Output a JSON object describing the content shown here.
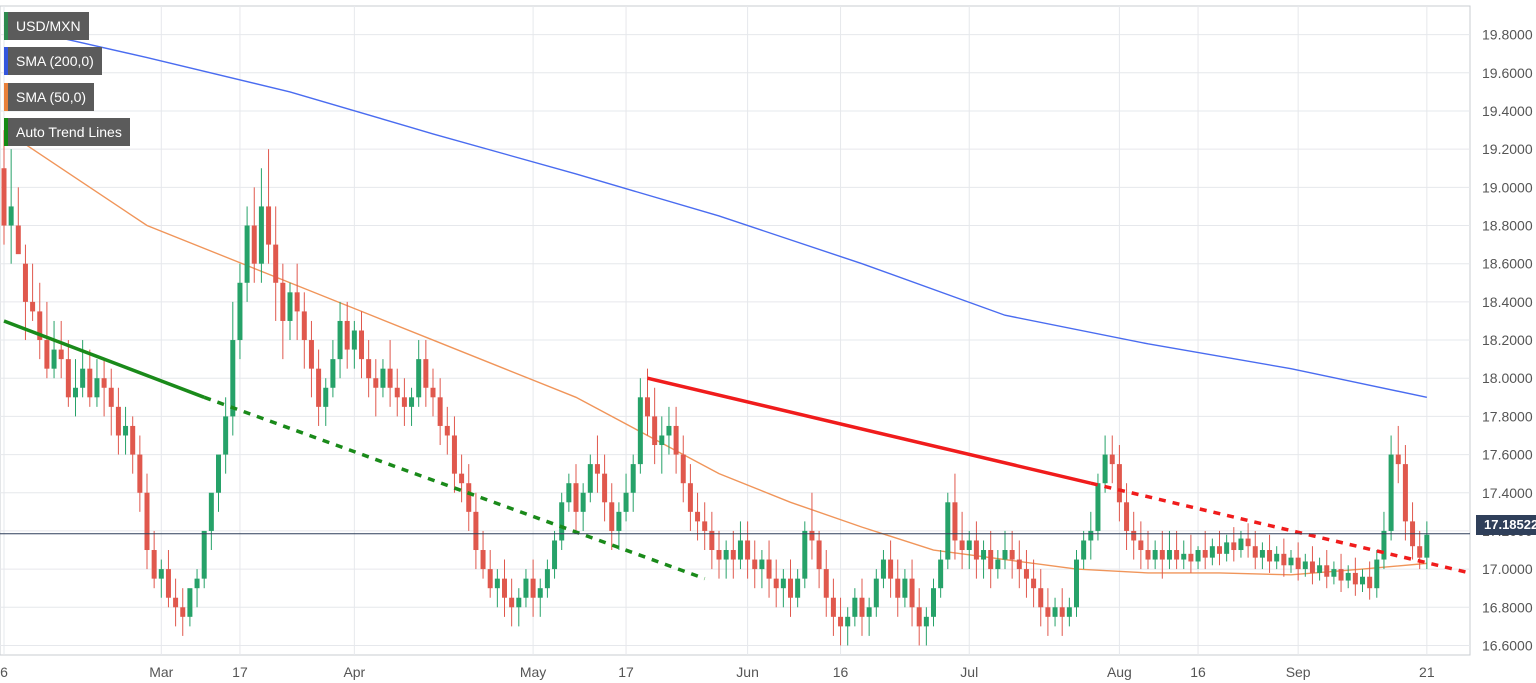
{
  "legend": {
    "symbol": "USD/MXN",
    "sma200": "SMA (200,0)",
    "sma50": "SMA (50,0)",
    "trend": "Auto Trend Lines"
  },
  "colors": {
    "bull": "#26a269",
    "bear": "#e0584d",
    "sma200": "#4a6cf0",
    "sma50": "#f0955a",
    "trend_up": "#1a8a1a",
    "trend_down": "#f01c1c",
    "grid": "#e6e8ec"
  },
  "current_price": "17.18522",
  "chart_data": {
    "type": "candlestick",
    "title": "USD/MXN",
    "y_ticks": [
      "19.8000",
      "19.6000",
      "19.4000",
      "19.2000",
      "19.0000",
      "18.8000",
      "18.6000",
      "18.4000",
      "18.2000",
      "18.0000",
      "17.8000",
      "17.6000",
      "17.4000",
      "17.2000",
      "17.0000",
      "16.8000",
      "16.6000"
    ],
    "ylim": [
      16.55,
      19.95
    ],
    "x_labels": [
      "6",
      "Mar",
      "17",
      "Apr",
      "May",
      "17",
      "Jun",
      "16",
      "Jul",
      "Aug",
      "16",
      "Sep",
      "21"
    ],
    "x_index": [
      0,
      22,
      33,
      49,
      74,
      87,
      104,
      117,
      135,
      156,
      167,
      181,
      199
    ],
    "last_price": 17.18522,
    "candles": [
      [
        19.1,
        19.3,
        18.8,
        18.7
      ],
      [
        18.8,
        19.2,
        18.9,
        18.6
      ],
      [
        18.8,
        19.0,
        18.65,
        18.7
      ],
      [
        18.6,
        18.7,
        18.4,
        18.2
      ],
      [
        18.4,
        18.6,
        18.35,
        18.3
      ],
      [
        18.35,
        18.5,
        18.2,
        18.1
      ],
      [
        18.2,
        18.4,
        18.05,
        18.0
      ],
      [
        18.05,
        18.3,
        18.15,
        18.0
      ],
      [
        18.15,
        18.3,
        18.1,
        18.0
      ],
      [
        18.1,
        18.2,
        17.9,
        17.85
      ],
      [
        17.9,
        18.1,
        17.95,
        17.8
      ],
      [
        17.95,
        18.2,
        18.05,
        17.9
      ],
      [
        18.05,
        18.15,
        17.9,
        17.85
      ],
      [
        17.9,
        18.1,
        18.0,
        17.85
      ],
      [
        18.0,
        18.1,
        17.95,
        17.8
      ],
      [
        17.95,
        18.05,
        17.85,
        17.7
      ],
      [
        17.85,
        17.95,
        17.7,
        17.6
      ],
      [
        17.7,
        17.85,
        17.75,
        17.6
      ],
      [
        17.75,
        17.8,
        17.6,
        17.5
      ],
      [
        17.6,
        17.7,
        17.4,
        17.3
      ],
      [
        17.4,
        17.5,
        17.1,
        17.0
      ],
      [
        17.1,
        17.2,
        16.95,
        16.9
      ],
      [
        16.95,
        17.05,
        17.0,
        16.85
      ],
      [
        17.0,
        17.1,
        16.85,
        16.8
      ],
      [
        16.85,
        16.95,
        16.8,
        16.7
      ],
      [
        16.8,
        16.9,
        16.75,
        16.65
      ],
      [
        16.75,
        16.85,
        16.9,
        16.7
      ],
      [
        16.9,
        17.0,
        16.95,
        16.8
      ],
      [
        16.95,
        17.1,
        17.2,
        16.9
      ],
      [
        17.2,
        17.3,
        17.4,
        17.1
      ],
      [
        17.4,
        17.5,
        17.6,
        17.3
      ],
      [
        17.6,
        17.9,
        17.8,
        17.5
      ],
      [
        17.8,
        18.4,
        18.2,
        17.7
      ],
      [
        18.2,
        18.6,
        18.5,
        18.1
      ],
      [
        18.5,
        18.9,
        18.8,
        18.4
      ],
      [
        18.8,
        19.0,
        18.6,
        18.5
      ],
      [
        18.6,
        19.1,
        18.9,
        18.5
      ],
      [
        18.9,
        19.2,
        18.7,
        18.6
      ],
      [
        18.7,
        18.9,
        18.5,
        18.3
      ],
      [
        18.5,
        18.6,
        18.3,
        18.1
      ],
      [
        18.3,
        18.5,
        18.45,
        18.2
      ],
      [
        18.45,
        18.6,
        18.35,
        18.2
      ],
      [
        18.35,
        18.45,
        18.2,
        18.05
      ],
      [
        18.2,
        18.3,
        18.05,
        17.9
      ],
      [
        18.05,
        18.15,
        17.85,
        17.75
      ],
      [
        17.85,
        18.0,
        17.95,
        17.75
      ],
      [
        17.95,
        18.2,
        18.1,
        17.9
      ],
      [
        18.1,
        18.4,
        18.3,
        18.0
      ],
      [
        18.3,
        18.4,
        18.15,
        18.05
      ],
      [
        18.15,
        18.3,
        18.25,
        18.05
      ],
      [
        18.25,
        18.35,
        18.1,
        18.0
      ],
      [
        18.1,
        18.2,
        18.0,
        17.9
      ],
      [
        18.0,
        18.1,
        17.95,
        17.8
      ],
      [
        17.95,
        18.1,
        18.05,
        17.9
      ],
      [
        18.05,
        18.2,
        17.95,
        17.85
      ],
      [
        17.95,
        18.05,
        17.9,
        17.8
      ],
      [
        17.9,
        18.0,
        17.85,
        17.75
      ],
      [
        17.85,
        17.95,
        17.9,
        17.75
      ],
      [
        17.9,
        18.2,
        18.1,
        17.85
      ],
      [
        18.1,
        18.2,
        17.95,
        17.85
      ],
      [
        17.95,
        18.05,
        17.9,
        17.8
      ],
      [
        17.9,
        18.0,
        17.75,
        17.65
      ],
      [
        17.75,
        17.85,
        17.7,
        17.6
      ],
      [
        17.7,
        17.8,
        17.5,
        17.4
      ],
      [
        17.5,
        17.6,
        17.45,
        17.35
      ],
      [
        17.45,
        17.55,
        17.3,
        17.2
      ],
      [
        17.3,
        17.4,
        17.1,
        17.0
      ],
      [
        17.1,
        17.2,
        17.0,
        16.95
      ],
      [
        17.0,
        17.1,
        16.9,
        16.85
      ],
      [
        16.9,
        17.0,
        16.95,
        16.8
      ],
      [
        16.95,
        17.05,
        16.85,
        16.75
      ],
      [
        16.85,
        16.95,
        16.8,
        16.7
      ],
      [
        16.8,
        16.9,
        16.85,
        16.7
      ],
      [
        16.85,
        17.0,
        16.95,
        16.8
      ],
      [
        16.95,
        17.05,
        16.85,
        16.75
      ],
      [
        16.85,
        16.95,
        16.9,
        16.75
      ],
      [
        16.9,
        17.05,
        17.0,
        16.85
      ],
      [
        17.0,
        17.2,
        17.15,
        16.95
      ],
      [
        17.15,
        17.4,
        17.35,
        17.1
      ],
      [
        17.35,
        17.5,
        17.45,
        17.3
      ],
      [
        17.45,
        17.55,
        17.3,
        17.2
      ],
      [
        17.3,
        17.45,
        17.4,
        17.2
      ],
      [
        17.4,
        17.6,
        17.55,
        17.35
      ],
      [
        17.55,
        17.7,
        17.5,
        17.4
      ],
      [
        17.5,
        17.6,
        17.35,
        17.25
      ],
      [
        17.35,
        17.45,
        17.2,
        17.1
      ],
      [
        17.2,
        17.35,
        17.3,
        17.1
      ],
      [
        17.3,
        17.5,
        17.4,
        17.25
      ],
      [
        17.4,
        17.6,
        17.55,
        17.3
      ],
      [
        17.55,
        18.0,
        17.9,
        17.5
      ],
      [
        17.9,
        18.05,
        17.8,
        17.7
      ],
      [
        17.8,
        17.95,
        17.65,
        17.55
      ],
      [
        17.65,
        17.8,
        17.7,
        17.5
      ],
      [
        17.7,
        17.85,
        17.75,
        17.6
      ],
      [
        17.75,
        17.85,
        17.6,
        17.5
      ],
      [
        17.6,
        17.7,
        17.45,
        17.35
      ],
      [
        17.45,
        17.55,
        17.3,
        17.2
      ],
      [
        17.3,
        17.4,
        17.25,
        17.15
      ],
      [
        17.25,
        17.35,
        17.2,
        17.1
      ],
      [
        17.2,
        17.3,
        17.1,
        17.0
      ],
      [
        17.1,
        17.2,
        17.05,
        16.95
      ],
      [
        17.05,
        17.15,
        17.1,
        16.95
      ],
      [
        17.1,
        17.2,
        17.05,
        16.95
      ],
      [
        17.05,
        17.25,
        17.15,
        17.0
      ],
      [
        17.15,
        17.25,
        17.05,
        16.95
      ],
      [
        17.05,
        17.15,
        17.0,
        16.9
      ],
      [
        17.0,
        17.1,
        17.05,
        16.9
      ],
      [
        17.05,
        17.15,
        16.95,
        16.85
      ],
      [
        16.95,
        17.05,
        16.9,
        16.8
      ],
      [
        16.9,
        17.0,
        16.95,
        16.8
      ],
      [
        16.95,
        17.05,
        16.85,
        16.75
      ],
      [
        16.85,
        17.0,
        16.95,
        16.8
      ],
      [
        16.95,
        17.25,
        17.2,
        16.9
      ],
      [
        17.2,
        17.4,
        17.15,
        17.05
      ],
      [
        17.15,
        17.2,
        17.0,
        16.9
      ],
      [
        17.0,
        17.1,
        16.85,
        16.75
      ],
      [
        16.85,
        16.95,
        16.75,
        16.65
      ],
      [
        16.75,
        16.85,
        16.7,
        16.6
      ],
      [
        16.7,
        16.8,
        16.75,
        16.6
      ],
      [
        16.75,
        16.9,
        16.85,
        16.7
      ],
      [
        16.85,
        16.95,
        16.75,
        16.65
      ],
      [
        16.75,
        16.85,
        16.8,
        16.65
      ],
      [
        16.8,
        17.0,
        16.95,
        16.75
      ],
      [
        16.95,
        17.1,
        17.05,
        16.9
      ],
      [
        17.05,
        17.15,
        16.95,
        16.85
      ],
      [
        16.95,
        17.05,
        16.85,
        16.75
      ],
      [
        16.85,
        17.0,
        16.95,
        16.8
      ],
      [
        16.95,
        17.05,
        16.8,
        16.7
      ],
      [
        16.8,
        16.9,
        16.7,
        16.6
      ],
      [
        16.7,
        16.8,
        16.75,
        16.6
      ],
      [
        16.75,
        16.95,
        16.9,
        16.7
      ],
      [
        16.9,
        17.1,
        17.05,
        16.85
      ],
      [
        17.05,
        17.4,
        17.35,
        17.0
      ],
      [
        17.35,
        17.5,
        17.15,
        17.05
      ],
      [
        17.15,
        17.3,
        17.1,
        17.0
      ],
      [
        17.1,
        17.2,
        17.15,
        17.0
      ],
      [
        17.15,
        17.25,
        17.05,
        16.95
      ],
      [
        17.05,
        17.15,
        17.1,
        16.95
      ],
      [
        17.1,
        17.2,
        17.0,
        16.9
      ],
      [
        17.0,
        17.1,
        17.05,
        16.95
      ],
      [
        17.05,
        17.2,
        17.1,
        17.0
      ],
      [
        17.1,
        17.2,
        17.05,
        16.95
      ],
      [
        17.05,
        17.15,
        17.0,
        16.9
      ],
      [
        17.0,
        17.1,
        16.95,
        16.85
      ],
      [
        16.95,
        17.05,
        16.9,
        16.8
      ],
      [
        16.9,
        17.0,
        16.8,
        16.7
      ],
      [
        16.8,
        16.9,
        16.75,
        16.65
      ],
      [
        16.75,
        16.85,
        16.8,
        16.7
      ],
      [
        16.8,
        16.9,
        16.75,
        16.65
      ],
      [
        16.75,
        16.85,
        16.8,
        16.7
      ],
      [
        16.8,
        17.1,
        17.05,
        16.75
      ],
      [
        17.05,
        17.2,
        17.15,
        17.0
      ],
      [
        17.15,
        17.3,
        17.2,
        17.05
      ],
      [
        17.2,
        17.5,
        17.45,
        17.15
      ],
      [
        17.45,
        17.7,
        17.6,
        17.4
      ],
      [
        17.6,
        17.7,
        17.55,
        17.45
      ],
      [
        17.55,
        17.65,
        17.35,
        17.25
      ],
      [
        17.35,
        17.45,
        17.2,
        17.1
      ],
      [
        17.2,
        17.3,
        17.15,
        17.05
      ],
      [
        17.15,
        17.25,
        17.1,
        17.0
      ],
      [
        17.1,
        17.2,
        17.05,
        17.0
      ],
      [
        17.05,
        17.15,
        17.1,
        17.0
      ],
      [
        17.1,
        17.2,
        17.05,
        16.95
      ],
      [
        17.05,
        17.2,
        17.1,
        17.0
      ],
      [
        17.1,
        17.2,
        17.05,
        17.0
      ],
      [
        17.05,
        17.15,
        17.08,
        17.0
      ],
      [
        17.08,
        17.18,
        17.04,
        16.98
      ],
      [
        17.04,
        17.12,
        17.1,
        17.0
      ],
      [
        17.1,
        17.2,
        17.06,
        17.0
      ],
      [
        17.06,
        17.16,
        17.12,
        17.02
      ],
      [
        17.12,
        17.2,
        17.08,
        17.02
      ],
      [
        17.08,
        17.18,
        17.14,
        17.04
      ],
      [
        17.14,
        17.22,
        17.1,
        17.04
      ],
      [
        17.1,
        17.2,
        17.16,
        17.06
      ],
      [
        17.16,
        17.24,
        17.12,
        17.06
      ],
      [
        17.12,
        17.2,
        17.06,
        17.0
      ],
      [
        17.06,
        17.14,
        17.1,
        17.0
      ],
      [
        17.1,
        17.18,
        17.04,
        16.98
      ],
      [
        17.04,
        17.12,
        17.08,
        17.0
      ],
      [
        17.08,
        17.16,
        17.02,
        16.96
      ],
      [
        17.02,
        17.1,
        17.06,
        16.98
      ],
      [
        17.06,
        17.14,
        17.0,
        16.94
      ],
      [
        17.0,
        17.08,
        17.04,
        16.96
      ],
      [
        17.04,
        17.12,
        16.98,
        16.92
      ],
      [
        16.98,
        17.06,
        17.02,
        16.94
      ],
      [
        17.02,
        17.1,
        16.96,
        16.9
      ],
      [
        16.96,
        17.04,
        17.0,
        16.92
      ],
      [
        17.0,
        17.08,
        16.94,
        16.88
      ],
      [
        16.94,
        17.02,
        16.98,
        16.9
      ],
      [
        16.98,
        17.06,
        16.92,
        16.86
      ],
      [
        16.92,
        17.0,
        16.96,
        16.88
      ],
      [
        16.96,
        17.04,
        16.9,
        16.84
      ],
      [
        16.9,
        17.1,
        17.05,
        16.85
      ],
      [
        17.05,
        17.3,
        17.2,
        17.0
      ],
      [
        17.2,
        17.7,
        17.6,
        17.15
      ],
      [
        17.6,
        17.75,
        17.55,
        17.45
      ],
      [
        17.55,
        17.65,
        17.25,
        17.15
      ],
      [
        17.25,
        17.35,
        17.12,
        17.05
      ],
      [
        17.12,
        17.2,
        17.06,
        17.0
      ],
      [
        17.06,
        17.25,
        17.18,
        17.0
      ]
    ],
    "sma200": {
      "x": [
        0,
        20,
        40,
        60,
        80,
        100,
        120,
        140,
        160,
        180,
        199
      ],
      "y": [
        19.85,
        19.68,
        19.5,
        19.28,
        19.07,
        18.85,
        18.6,
        18.33,
        18.18,
        18.05,
        17.9
      ]
    },
    "sma50": {
      "x": [
        0,
        10,
        20,
        30,
        40,
        50,
        60,
        70,
        80,
        90,
        100,
        110,
        120,
        130,
        140,
        150,
        160,
        170,
        180,
        190,
        199
      ],
      "y": [
        19.3,
        19.05,
        18.8,
        18.65,
        18.5,
        18.35,
        18.2,
        18.05,
        17.9,
        17.7,
        17.5,
        17.35,
        17.22,
        17.1,
        17.05,
        17.0,
        16.98,
        16.98,
        16.97,
        17.0,
        17.03
      ]
    },
    "trend_lines": [
      {
        "color": "up",
        "style": "solid",
        "x1": 0,
        "y1": 18.3,
        "x2": 28,
        "y2": 17.9
      },
      {
        "color": "up",
        "style": "dashed",
        "x1": 28,
        "y1": 17.9,
        "x2": 98,
        "y2": 16.95
      },
      {
        "color": "down",
        "style": "solid",
        "x1": 90,
        "y1": 18.0,
        "x2": 152,
        "y2": 17.45
      },
      {
        "color": "down",
        "style": "dashed",
        "x1": 152,
        "y1": 17.45,
        "x2": 205,
        "y2": 16.98
      }
    ]
  }
}
